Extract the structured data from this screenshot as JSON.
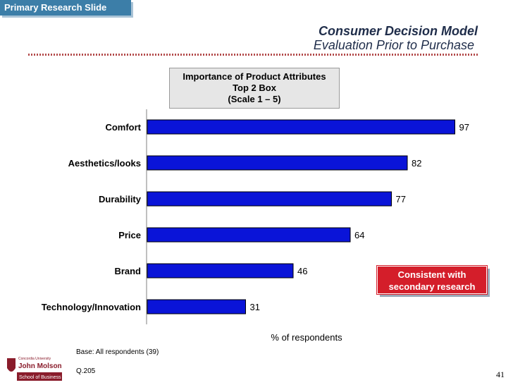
{
  "header": {
    "tag": "Primary Research Slide",
    "title": "Consumer Decision Model",
    "subtitle": "Evaluation Prior to Purchase"
  },
  "chart_box": {
    "line1": "Importance of Product Attributes",
    "line2": "Top 2 Box",
    "line3": "(Scale 1 – 5)"
  },
  "chart_data": {
    "type": "bar",
    "orientation": "horizontal",
    "categories": [
      "Comfort",
      "Aesthetics/looks",
      "Durability",
      "Price",
      "Brand",
      "Technology/Innovation"
    ],
    "values": [
      97,
      82,
      77,
      64,
      46,
      31
    ],
    "xlabel": "% of respondents",
    "xlim": [
      0,
      100
    ],
    "bar_color": "#0a14d8",
    "grid": false
  },
  "callout": {
    "line1": "Consistent with",
    "line2": "secondary research",
    "color": "#d41e2a"
  },
  "footer": {
    "base": "Base: All respondents (39)",
    "question": "Q.205",
    "page": "41",
    "logo_line1": "Concordia University",
    "logo_line2": "John Molson",
    "logo_line3": "School of Business"
  }
}
